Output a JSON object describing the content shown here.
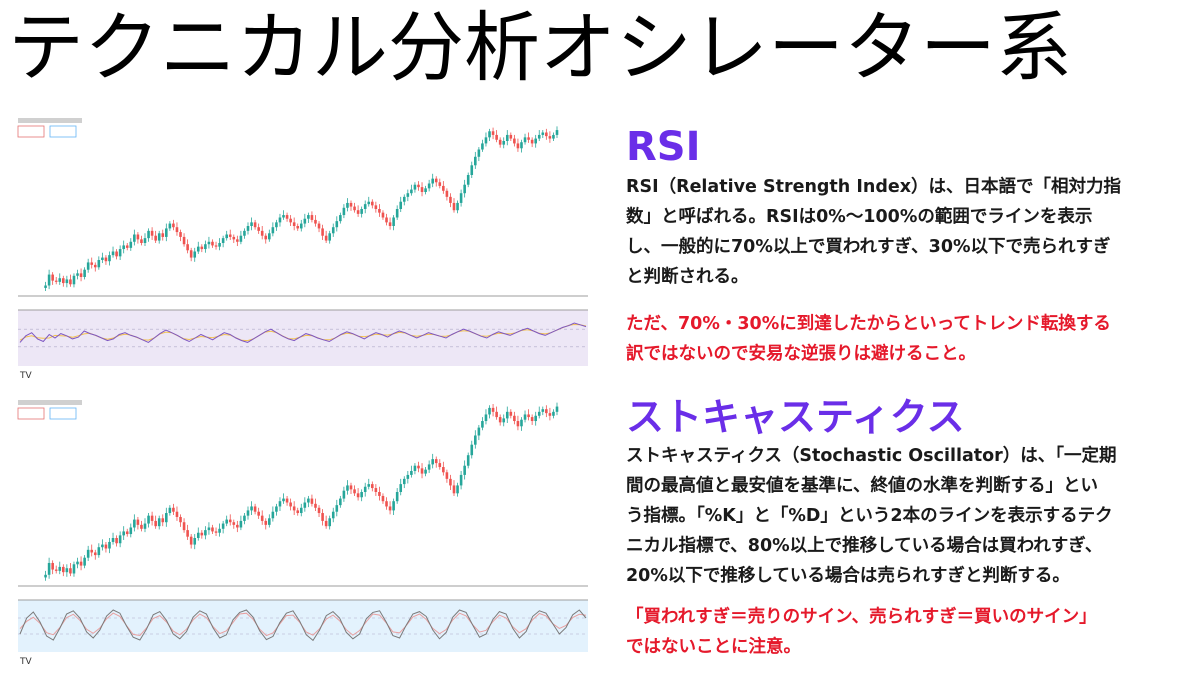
{
  "title": "テクニカル分析オシレーター系",
  "colors": {
    "heading": "#6a2ee8",
    "note": "#e5192b",
    "candle_up": "#26a69a",
    "candle_down": "#ef5350",
    "rsi_line": "#7e57c2",
    "rsi_band": "#ede7f6",
    "stoch_k": "#7a7a7a",
    "stoch_d": "#e8a0a0",
    "stoch_band": "#e3f2fd"
  },
  "rsi": {
    "heading": "RSI",
    "body_lines": [
      "RSI（Relative Strength Index）は、日本語で「相対力指",
      "数」と呼ばれる。RSIは0%〜100%の範囲でラインを表示",
      "し、一般的に70%以上で買われすぎ、30%以下で売られすぎ",
      "と判断される。"
    ],
    "note_lines": [
      "ただ、70%・30%に到達したからといってトレンド転換する",
      "訳ではないので安易な逆張りは避けること。"
    ]
  },
  "stochastic": {
    "heading": "ストキャスティクス",
    "body_lines": [
      "ストキャスティクス（Stochastic Oscillator）は、「一定期",
      "間の最高値と最安値を基準に、終値の水準を判断する」とい",
      "う指標。「%K」と「%D」という2本のラインを表示するテク",
      "ニカル指標で、80%以上で推移している場合は買われすぎ、",
      "20%以下で推移している場合は売られすぎと判断する。"
    ],
    "note_lines": [
      "「買われすぎ＝売りのサイン、売られすぎ＝買いのサイン」",
      "ではないことに注意。"
    ]
  },
  "price_series": [
    10,
    14,
    32,
    22,
    20,
    26,
    18,
    24,
    16,
    30,
    34,
    28,
    40,
    52,
    48,
    44,
    56,
    60,
    54,
    64,
    70,
    62,
    74,
    80,
    76,
    86,
    98,
    90,
    84,
    92,
    104,
    96,
    88,
    100,
    94,
    108,
    116,
    110,
    102,
    94,
    82,
    72,
    60,
    70,
    78,
    74,
    82,
    86,
    80,
    78,
    84,
    92,
    98,
    94,
    90,
    86,
    96,
    104,
    112,
    118,
    110,
    104,
    96,
    90,
    100,
    110,
    118,
    126,
    130,
    124,
    118,
    112,
    108,
    116,
    124,
    130,
    122,
    116,
    108,
    96,
    88,
    100,
    110,
    120,
    130,
    142,
    150,
    144,
    138,
    132,
    140,
    148,
    152,
    146,
    140,
    134,
    126,
    118,
    112,
    126,
    140,
    152,
    160,
    166,
    172,
    180,
    176,
    168,
    174,
    182,
    190,
    184,
    178,
    170,
    160,
    150,
    138,
    150,
    166,
    180,
    196,
    212,
    226,
    238,
    248,
    258,
    268,
    262,
    254,
    246,
    252,
    262,
    256,
    248,
    240,
    250,
    258,
    254,
    248,
    256,
    262,
    266,
    260,
    256,
    262,
    270
  ],
  "rsi_series": [
    40,
    55,
    62,
    48,
    42,
    58,
    50,
    60,
    55,
    48,
    52,
    66,
    60,
    56,
    50,
    44,
    48,
    58,
    62,
    56,
    52,
    46,
    40,
    50,
    60,
    68,
    62,
    56,
    48,
    42,
    50,
    58,
    52,
    46,
    54,
    62,
    58,
    50,
    44,
    40,
    48,
    56,
    64,
    70,
    62,
    54,
    48,
    44,
    52,
    60,
    56,
    50,
    46,
    42,
    50,
    58,
    64,
    60,
    54,
    48,
    56,
    62,
    58,
    52,
    60,
    66,
    62,
    56,
    50,
    56,
    62,
    58,
    54,
    50,
    58,
    64,
    70,
    66,
    60,
    54,
    50,
    58,
    64,
    60,
    56,
    62,
    68,
    72,
    66,
    60,
    56,
    62,
    68,
    74,
    78,
    84,
    80,
    76
  ],
  "stoch_series": [
    30,
    70,
    85,
    60,
    25,
    15,
    45,
    80,
    88,
    70,
    35,
    20,
    40,
    75,
    90,
    82,
    50,
    22,
    15,
    42,
    78,
    86,
    64,
    30,
    18,
    36,
    72,
    88,
    80,
    45,
    20,
    28,
    66,
    84,
    90,
    72,
    38,
    16,
    24,
    58,
    82,
    88,
    62,
    28,
    14,
    40,
    76,
    86,
    70,
    34,
    18,
    30,
    68,
    84,
    88,
    60,
    26,
    20,
    52,
    80,
    86,
    74,
    40,
    18,
    34,
    72,
    90,
    84,
    52,
    22,
    30,
    66,
    86,
    80,
    44,
    20,
    36,
    74,
    88,
    82,
    56,
    30,
    46,
    78,
    90,
    70
  ]
}
